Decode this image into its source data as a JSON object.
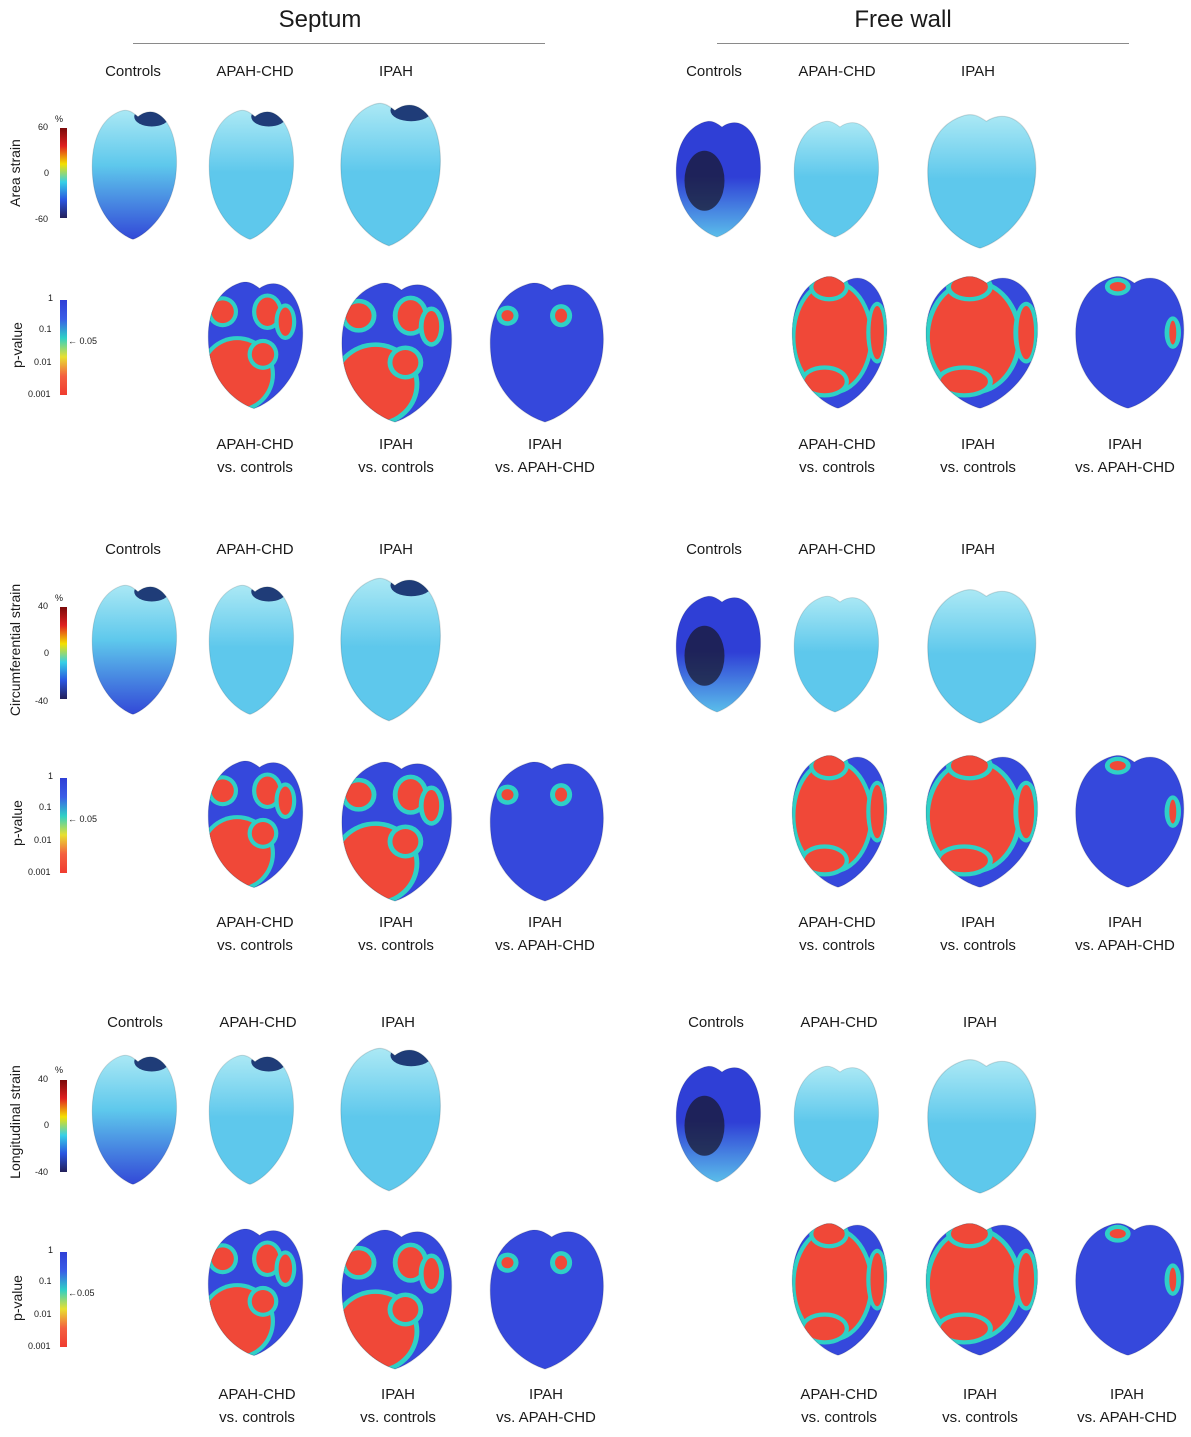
{
  "sections": [
    {
      "title": "Septum",
      "column_labels": [
        "Controls",
        "APAH-CHD",
        "IPAH"
      ]
    },
    {
      "title": "Free wall",
      "column_labels": [
        "Controls",
        "APAH-CHD",
        "IPAH"
      ]
    }
  ],
  "comparison_labels": [
    {
      "line1": "APAH-CHD",
      "line2": "vs. controls"
    },
    {
      "line1": "IPAH",
      "line2": "vs. controls"
    },
    {
      "line1": "IPAH",
      "line2": "vs. APAH-CHD"
    }
  ],
  "strain_rows": [
    {
      "label": "Area strain",
      "unit": "%",
      "scale_max": "60",
      "scale_mid": "0",
      "scale_min": "-60"
    },
    {
      "label": "Circumferential strain",
      "unit": "%",
      "scale_max": "40",
      "scale_mid": "0",
      "scale_min": "-40"
    },
    {
      "label": "Longitudinal strain",
      "unit": "%",
      "scale_max": "40",
      "scale_mid": "0",
      "scale_min": "-40"
    }
  ],
  "pvalue_scale": {
    "label": "p-value",
    "ticks": [
      "1",
      "0.1",
      "0.01",
      "0.001"
    ],
    "marker": "0.05"
  },
  "colors": {
    "strain_scale": [
      "#7a0a0a",
      "#e02020",
      "#f4e000",
      "#36d0e6",
      "#2a55e0",
      "#24205a"
    ],
    "pvalue_scale": [
      "#2f3fd6",
      "#3a5ee6",
      "#2fd0c6",
      "#e8e030",
      "#f46040",
      "#f03c30"
    ],
    "strain_low": "#2f3fd6",
    "strain_mid": "#5ec8ec",
    "strain_high": "#b8eef6",
    "strain_dark": "#1a1a30",
    "sig": "#f04838",
    "nonsig": "#3548dc"
  },
  "shapes": [
    {
      "name": "septum",
      "blobs": [
        [
          [
            0.35,
            0.72
          ],
          [
            0.3,
            0.24
          ]
        ],
        [
          [
            0.62,
            0.28
          ],
          [
            0.1,
            0.1
          ]
        ],
        [
          [
            0.22,
            0.28
          ],
          [
            0.1,
            0.08
          ]
        ],
        [
          [
            0.58,
            0.58
          ],
          [
            0.1,
            0.08
          ]
        ],
        [
          [
            0.78,
            0.35
          ],
          [
            0.06,
            0.1
          ]
        ]
      ]
    },
    {
      "name": "freewall",
      "blobs": [
        [
          [
            0.45,
            0.48
          ],
          [
            0.33,
            0.36
          ]
        ],
        [
          [
            0.85,
            0.45
          ],
          [
            0.06,
            0.18
          ]
        ],
        [
          [
            0.42,
            0.14
          ],
          [
            0.14,
            0.07
          ]
        ],
        [
          [
            0.38,
            0.78
          ],
          [
            0.18,
            0.08
          ]
        ]
      ]
    }
  ]
}
